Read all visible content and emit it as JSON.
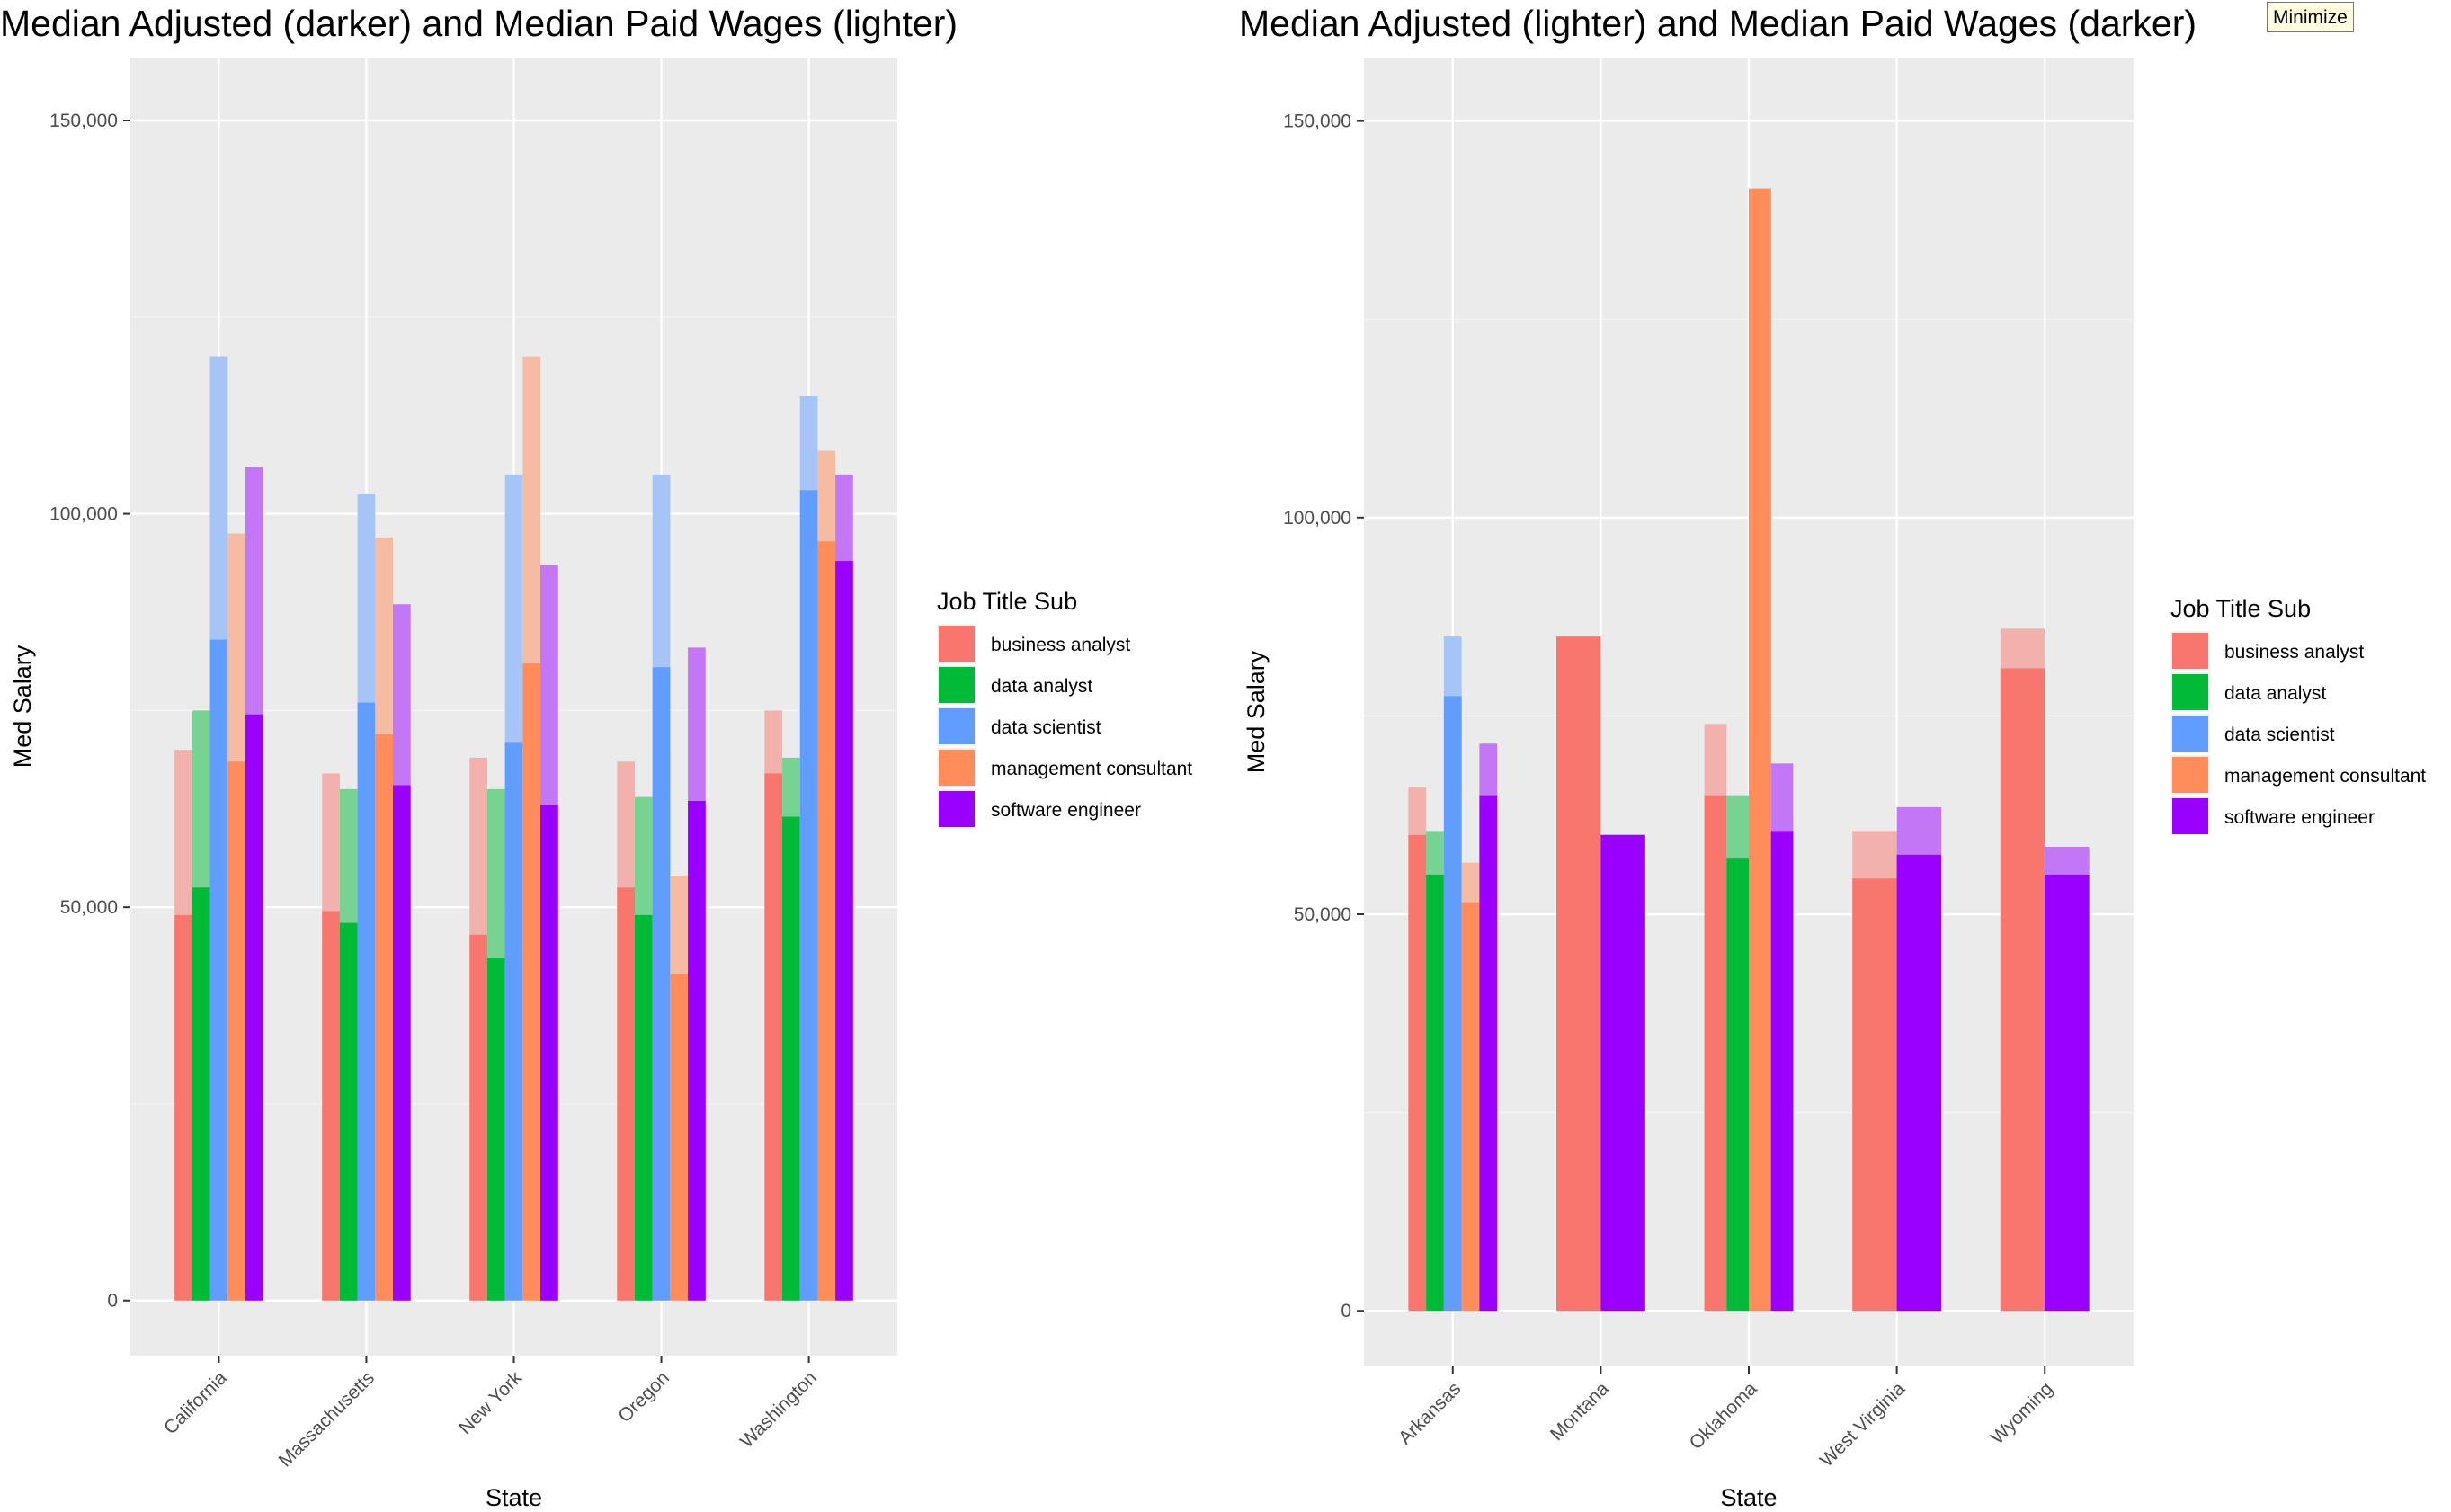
{
  "window": {
    "minimize_label": "Minimize"
  },
  "palette": {
    "business analyst": "#F8766D",
    "data analyst": "#00BA38",
    "data scientist": "#619CFF",
    "management consultant": "#FF8C5A",
    "software engineer": "#9A00FF"
  },
  "chart_data": [
    {
      "type": "bar",
      "title": "Median Adjusted (darker) and Median Paid Wages (lighter)",
      "xlabel": "State",
      "ylabel": "Med Salary",
      "ylim": [
        -7000,
        158000
      ],
      "yticks": [
        0,
        50000,
        100000,
        150000
      ],
      "ytick_labels": [
        "0",
        "50,000",
        "100,000",
        "150,000"
      ],
      "grid": true,
      "legend": {
        "title": "Job Title Sub",
        "position": "right",
        "entries": [
          "business analyst",
          "data analyst",
          "data scientist",
          "management consultant",
          "software engineer"
        ]
      },
      "categories": [
        "California",
        "Massachusetts",
        "New York",
        "Oregon",
        "Washington"
      ],
      "series": [
        {
          "name": "business analyst",
          "adjusted": [
            49000,
            49500,
            46500,
            52500,
            67000
          ],
          "paid": [
            70000,
            67000,
            69000,
            68500,
            75000
          ]
        },
        {
          "name": "data analyst",
          "adjusted": [
            52500,
            48000,
            43500,
            49000,
            61500
          ],
          "paid": [
            75000,
            65000,
            65000,
            64000,
            69000
          ]
        },
        {
          "name": "data scientist",
          "adjusted": [
            84000,
            76000,
            71000,
            80500,
            103000
          ],
          "paid": [
            120000,
            102500,
            105000,
            105000,
            115000
          ]
        },
        {
          "name": "management consultant",
          "adjusted": [
            68500,
            72000,
            81000,
            41500,
            96500
          ],
          "paid": [
            97500,
            97000,
            120000,
            54000,
            108000
          ]
        },
        {
          "name": "software engineer",
          "adjusted": [
            74500,
            65500,
            63000,
            63500,
            94000
          ],
          "paid": [
            106000,
            88500,
            93500,
            83000,
            105000
          ]
        }
      ]
    },
    {
      "type": "bar",
      "title": "Median Adjusted (lighter) and Median Paid Wages (darker)",
      "xlabel": "State",
      "ylabel": "Med Salary",
      "ylim": [
        -7000,
        158000
      ],
      "yticks": [
        0,
        50000,
        100000,
        150000
      ],
      "ytick_labels": [
        "0",
        "50,000",
        "100,000",
        "150,000"
      ],
      "grid": true,
      "legend": {
        "title": "Job Title Sub",
        "position": "right",
        "entries": [
          "business analyst",
          "data analyst",
          "data scientist",
          "management consultant",
          "software engineer"
        ]
      },
      "categories": [
        "Arkansas",
        "Montana",
        "Oklahoma",
        "West Virginia",
        "Wyoming"
      ],
      "category_series": [
        [
          "business analyst",
          "data analyst",
          "data scientist",
          "management consultant",
          "software engineer"
        ],
        [
          "business analyst",
          "software engineer"
        ],
        [
          "business analyst",
          "data analyst",
          "management consultant",
          "software engineer"
        ],
        [
          "business analyst",
          "software engineer"
        ],
        [
          "business analyst",
          "software engineer"
        ]
      ],
      "series": [
        {
          "name": "business analyst",
          "paid": [
            60000,
            85000,
            65000,
            54500,
            81000
          ],
          "adjusted": [
            66000,
            85000,
            74000,
            60500,
            86000
          ]
        },
        {
          "name": "data analyst",
          "paid": [
            55000,
            null,
            57000,
            null,
            null
          ],
          "adjusted": [
            60500,
            null,
            65000,
            null,
            null
          ]
        },
        {
          "name": "data scientist",
          "paid": [
            77500,
            null,
            null,
            null,
            null
          ],
          "adjusted": [
            85000,
            null,
            null,
            null,
            null
          ]
        },
        {
          "name": "management consultant",
          "paid": [
            51500,
            null,
            141500,
            null,
            null
          ],
          "adjusted": [
            56500,
            null,
            141500,
            null,
            null
          ]
        },
        {
          "name": "software engineer",
          "paid": [
            65000,
            60000,
            60500,
            57500,
            55000
          ],
          "adjusted": [
            71500,
            60000,
            69000,
            63500,
            58500
          ]
        }
      ]
    }
  ]
}
